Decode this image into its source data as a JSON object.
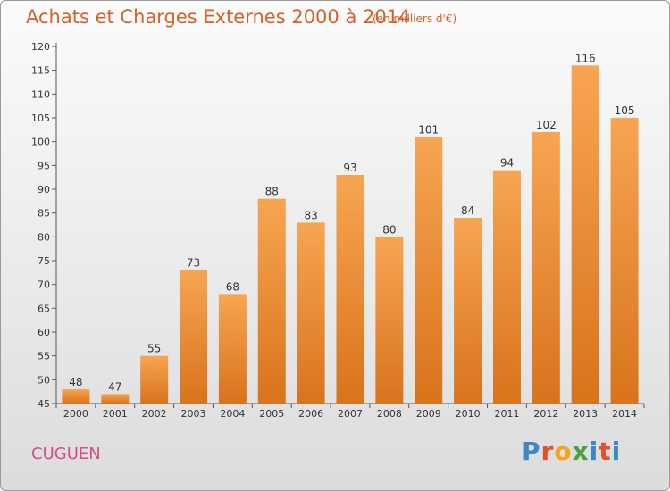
{
  "header": {
    "title": "Achats et Charges Externes 2000 à 2014",
    "subtitle": "(en milliers d'€)"
  },
  "footer": {
    "commune": "CUGUEN",
    "logo": "Proxiti"
  },
  "colors": {
    "bar_light": "#f7a552",
    "bar_dark": "#d9731c",
    "title": "#d1632a",
    "commune": "#d14e8c",
    "logo_letters": [
      "#3b88c9",
      "#e0522c",
      "#f4a51d",
      "#4aa23c",
      "#3b88c9",
      "#e0522c",
      "#3b88c9"
    ]
  },
  "chart_data": {
    "type": "bar",
    "title": "Achats et Charges Externes 2000 à 2014",
    "subtitle": "(en milliers d'€)",
    "categories": [
      "2000",
      "2001",
      "2002",
      "2003",
      "2004",
      "2005",
      "2006",
      "2007",
      "2008",
      "2009",
      "2010",
      "2011",
      "2012",
      "2013",
      "2014"
    ],
    "values": [
      48,
      47,
      55,
      73,
      68,
      88,
      83,
      93,
      80,
      101,
      84,
      94,
      102,
      116,
      105
    ],
    "ylim": [
      45,
      120
    ],
    "yticks": [
      45,
      50,
      55,
      60,
      65,
      70,
      75,
      80,
      85,
      90,
      95,
      100,
      105,
      110,
      115,
      120
    ],
    "grid": false,
    "data_labels": true
  }
}
